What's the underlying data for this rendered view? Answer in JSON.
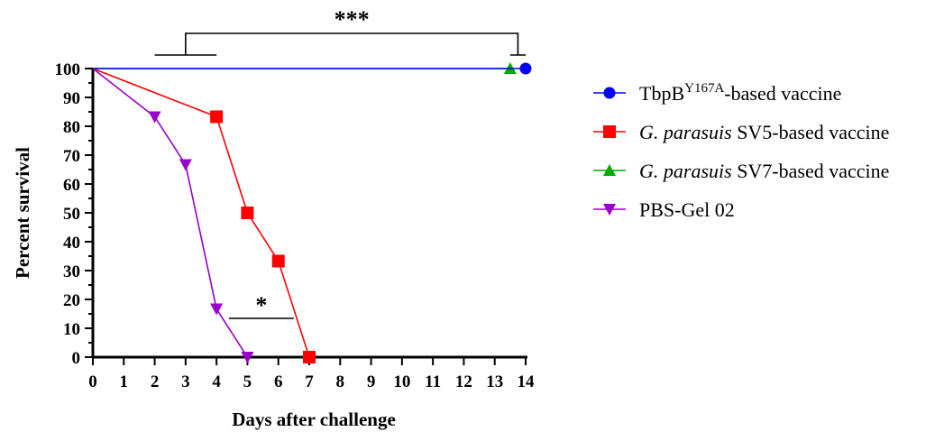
{
  "chart_data": {
    "type": "line",
    "xlabel": "Days after challenge",
    "ylabel": "Percent survival",
    "xlim": [
      0,
      14
    ],
    "ylim": [
      0,
      100
    ],
    "xticks": [
      "0",
      "1",
      "2",
      "3",
      "4",
      "5",
      "6",
      "7",
      "8",
      "9",
      "10",
      "11",
      "12",
      "13",
      "14"
    ],
    "yticks": [
      "0",
      "10",
      "20",
      "30",
      "40",
      "50",
      "60",
      "70",
      "80",
      "90",
      "100"
    ],
    "grid": false,
    "legend_position": "right",
    "series": [
      {
        "name_parts": [
          "TbpB",
          "Y167A",
          "-based vaccine"
        ],
        "color": "#0000ff",
        "marker": "circle",
        "x": [
          0,
          14
        ],
        "y": [
          100,
          100
        ],
        "marker_x": [
          14
        ],
        "marker_y": [
          100
        ]
      },
      {
        "name_parts": [
          "G. parasuis",
          " SV5-based vaccine"
        ],
        "color": "#ff0000",
        "marker": "square",
        "x": [
          0,
          4,
          5,
          6,
          7
        ],
        "y": [
          100,
          83.3,
          50,
          33.3,
          0
        ],
        "marker_x": [
          4,
          5,
          6,
          7
        ],
        "marker_y": [
          83.3,
          50,
          33.3,
          0
        ]
      },
      {
        "name_parts": [
          "G. parasuis",
          " SV7-based vaccine"
        ],
        "color": "#00aa00",
        "marker": "triangle-up",
        "x": [
          0,
          13.5
        ],
        "y": [
          100,
          100
        ],
        "marker_x": [
          13.5
        ],
        "marker_y": [
          100
        ]
      },
      {
        "name_parts": [
          "PBS-Gel 02"
        ],
        "color": "#9900cc",
        "marker": "triangle-down",
        "x": [
          0,
          2,
          3,
          4,
          5
        ],
        "y": [
          100,
          83.3,
          66.7,
          16.7,
          0
        ],
        "marker_x": [
          2,
          3,
          4,
          5
        ],
        "marker_y": [
          83.3,
          66.7,
          16.7,
          0
        ]
      }
    ],
    "annotations": [
      {
        "label": "***",
        "type": "bracket"
      },
      {
        "label": "*",
        "type": "line"
      }
    ]
  }
}
